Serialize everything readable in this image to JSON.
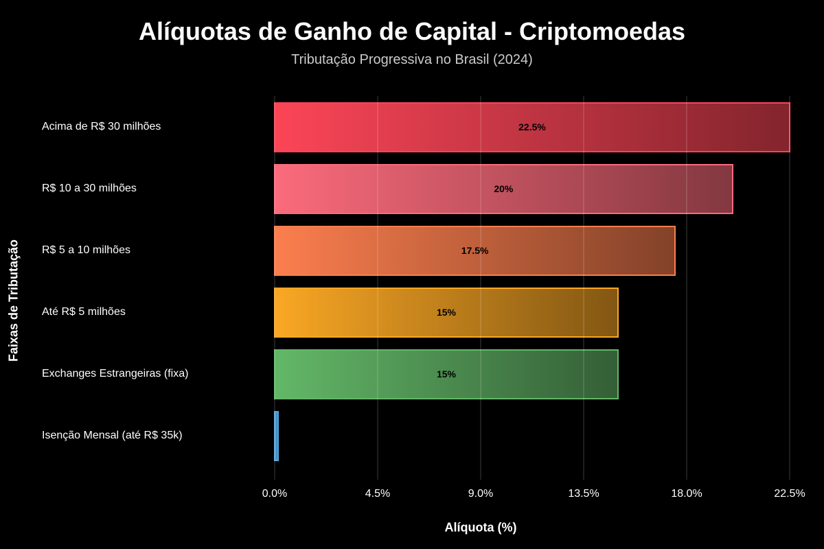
{
  "chart_data": {
    "type": "bar",
    "orientation": "horizontal",
    "title": "Alíquotas de Ganho de Capital - Criptomoedas",
    "subtitle": "Tributação Progressiva no Brasil (2024)",
    "xlabel": "Alíquota (%)",
    "ylabel": "Faixas de Tributação",
    "categories": [
      "Acima de R$ 30 milhões",
      "R$ 10 a 30 milhões",
      "R$ 5 a 10 milhões",
      "Até R$ 5 milhões",
      "Exchanges Estrangeiras (fixa)",
      "Isenção Mensal (até R$ 35k)"
    ],
    "values": [
      22.5,
      20,
      17.5,
      15,
      15,
      0.15
    ],
    "value_labels": [
      "22.5%",
      "20%",
      "17.5%",
      "15%",
      "15%",
      ""
    ],
    "bar_colors": [
      {
        "gradient_start": "#FB4557",
        "gradient_end": "#83242D",
        "border": "#FB4557"
      },
      {
        "gradient_start": "#FB6B7C",
        "gradient_end": "#833840",
        "border": "#FB6B7C"
      },
      {
        "gradient_start": "#FB7E4E",
        "gradient_end": "#834229",
        "border": "#FB7E4E"
      },
      {
        "gradient_start": "#FAA724",
        "gradient_end": "#825713",
        "border": "#FAA724"
      },
      {
        "gradient_start": "#63B768",
        "gradient_end": "#345F36",
        "border": "#63B768"
      },
      {
        "gradient_start": "#52A7E0",
        "gradient_end": "#3880AE",
        "border": "#52A7E0"
      }
    ],
    "xlim": [
      0,
      23.1
    ],
    "xticks": [
      0,
      4.5,
      9,
      13.5,
      18,
      22.5
    ],
    "xtick_labels": [
      "0.0%",
      "4.5%",
      "9.0%",
      "13.5%",
      "18.0%",
      "22.5%"
    ],
    "grid": true,
    "legend": false,
    "background_color": "#000000",
    "grid_color": "rgba(255,255,255,0.12)"
  }
}
